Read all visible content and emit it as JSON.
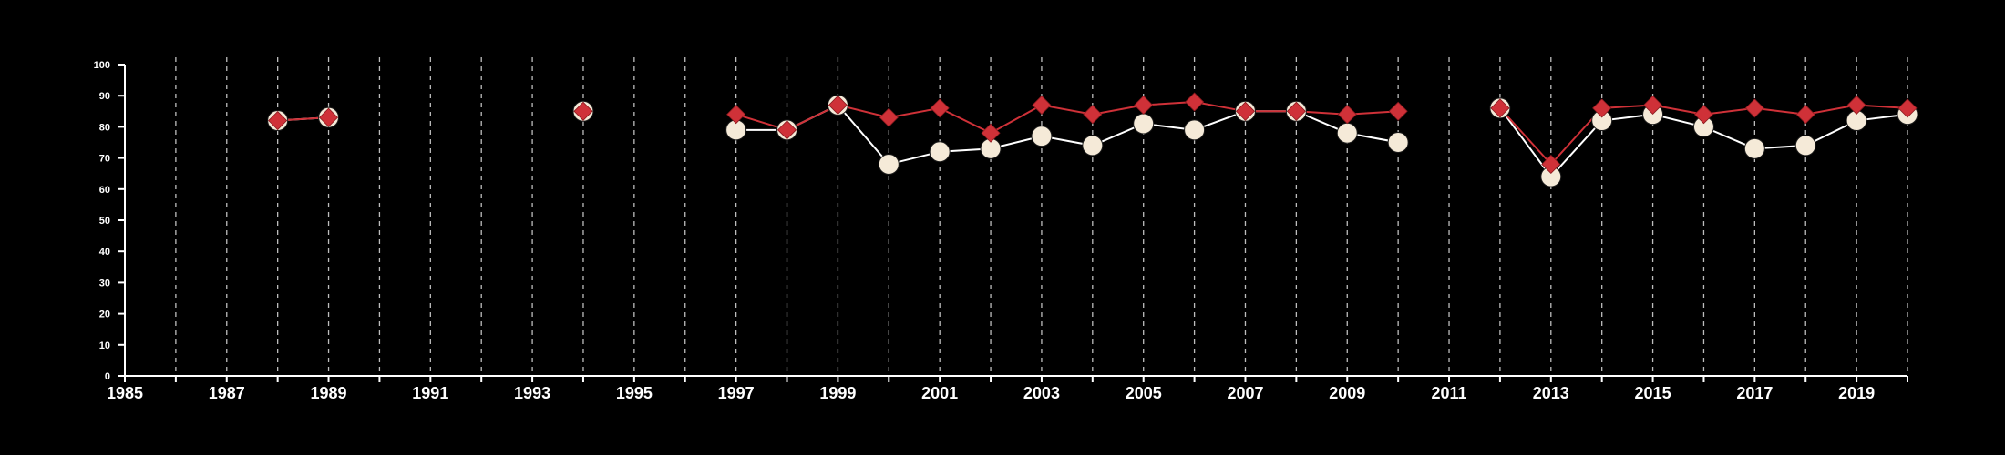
{
  "chart_data": {
    "type": "line",
    "title": "",
    "xlabel": "",
    "ylabel": "",
    "xlim": [
      1985,
      2020
    ],
    "ylim": [
      0,
      100
    ],
    "x_ticks": [
      1985,
      1986,
      1987,
      1988,
      1989,
      1990,
      1991,
      1992,
      1993,
      1994,
      1995,
      1996,
      1997,
      1998,
      1999,
      2000,
      2001,
      2002,
      2003,
      2004,
      2005,
      2006,
      2007,
      2008,
      2009,
      2010,
      2011,
      2012,
      2013,
      2014,
      2015,
      2016,
      2017,
      2018,
      2019,
      2020
    ],
    "x_tick_labels": [
      {
        "x": 1985,
        "label": "1985"
      },
      {
        "x": 1987,
        "label": "1987"
      },
      {
        "x": 1989,
        "label": "1989"
      },
      {
        "x": 1991,
        "label": "1991"
      },
      {
        "x": 1993,
        "label": "1993"
      },
      {
        "x": 1995,
        "label": "1995"
      },
      {
        "x": 1997,
        "label": "1997"
      },
      {
        "x": 1999,
        "label": "1999"
      },
      {
        "x": 2001,
        "label": "2001"
      },
      {
        "x": 2003,
        "label": "2003"
      },
      {
        "x": 2005,
        "label": "2005"
      },
      {
        "x": 2007,
        "label": "2007"
      },
      {
        "x": 2009,
        "label": "2009"
      },
      {
        "x": 2011,
        "label": "2011"
      },
      {
        "x": 2013,
        "label": "2013"
      },
      {
        "x": 2015,
        "label": "2015"
      },
      {
        "x": 2017,
        "label": "2017"
      },
      {
        "x": 2019,
        "label": "2019"
      }
    ],
    "y_tick_labels": [
      {
        "y": 0,
        "label": "0"
      },
      {
        "y": 10,
        "label": "10"
      },
      {
        "y": 20,
        "label": "20"
      },
      {
        "y": 30,
        "label": "30"
      },
      {
        "y": 40,
        "label": "40"
      },
      {
        "y": 50,
        "label": "50"
      },
      {
        "y": 60,
        "label": "60"
      },
      {
        "y": 70,
        "label": "70"
      },
      {
        "y": 80,
        "label": "80"
      },
      {
        "y": 90,
        "label": "90"
      },
      {
        "y": 100,
        "label": "100"
      }
    ],
    "vertical_grid": true,
    "vertical_grid_style": "dashed",
    "legend": "none",
    "series": [
      {
        "marker": "circle",
        "color": "#f5ead8",
        "line_color": "#ffffff",
        "points": [
          [
            1988,
            82
          ],
          [
            1989,
            83
          ],
          [
            1994,
            85
          ],
          [
            1997,
            79
          ],
          [
            1998,
            79
          ],
          [
            1999,
            87
          ],
          [
            2000,
            68
          ],
          [
            2001,
            72
          ],
          [
            2002,
            73
          ],
          [
            2003,
            77
          ],
          [
            2004,
            74
          ],
          [
            2005,
            81
          ],
          [
            2006,
            79
          ],
          [
            2007,
            85
          ],
          [
            2008,
            85
          ],
          [
            2009,
            78
          ],
          [
            2010,
            75
          ],
          [
            2012,
            86
          ],
          [
            2013,
            64
          ],
          [
            2014,
            82
          ],
          [
            2015,
            84
          ],
          [
            2016,
            80
          ],
          [
            2017,
            73
          ],
          [
            2018,
            74
          ],
          [
            2019,
            82
          ],
          [
            2020,
            84
          ]
        ]
      },
      {
        "marker": "diamond",
        "color": "#cf3138",
        "line_color": "#cf3138",
        "points": [
          [
            1988,
            82
          ],
          [
            1989,
            83
          ],
          [
            1994,
            85
          ],
          [
            1997,
            84
          ],
          [
            1998,
            79
          ],
          [
            1999,
            87
          ],
          [
            2000,
            83
          ],
          [
            2001,
            86
          ],
          [
            2002,
            78
          ],
          [
            2003,
            87
          ],
          [
            2004,
            84
          ],
          [
            2005,
            87
          ],
          [
            2006,
            88
          ],
          [
            2007,
            85
          ],
          [
            2008,
            85
          ],
          [
            2009,
            84
          ],
          [
            2010,
            85
          ],
          [
            2012,
            86
          ],
          [
            2013,
            68
          ],
          [
            2014,
            86
          ],
          [
            2015,
            87
          ],
          [
            2016,
            84
          ],
          [
            2017,
            86
          ],
          [
            2018,
            84
          ],
          [
            2019,
            87
          ],
          [
            2020,
            86
          ]
        ]
      }
    ]
  }
}
